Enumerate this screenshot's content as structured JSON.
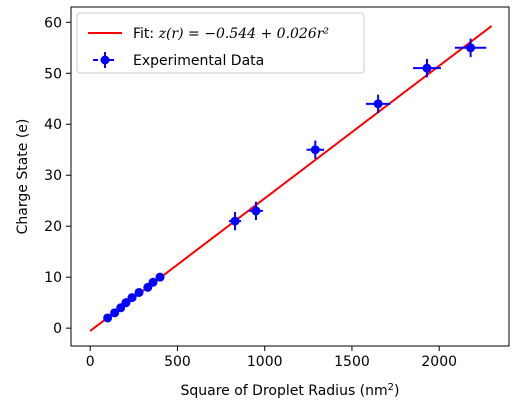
{
  "chart_data": {
    "type": "scatter",
    "title": "",
    "xlabel": "Square of Droplet Radius (nm",
    "xlabel_sup": "2",
    "xlabel_tail": ")",
    "ylabel": "Charge State (e)",
    "xlim": [
      -110,
      2400
    ],
    "ylim": [
      -3.5,
      63
    ],
    "xticks": [
      0,
      500,
      1000,
      1500,
      2000,
      2500
    ],
    "xtick_labels": [
      "0",
      "500",
      "1000",
      "1500",
      "2000",
      ""
    ],
    "yticks": [
      0,
      10,
      20,
      30,
      40,
      50,
      60
    ],
    "ytick_labels": [
      "0",
      "10",
      "20",
      "30",
      "40",
      "50",
      "60"
    ],
    "grid": false,
    "legend_position": "top-left",
    "colors": {
      "fit": "#ff0000",
      "data": "#0000ff",
      "axis": "#000000"
    },
    "fit": {
      "name": "Fit: ",
      "math": "z(r) = −0.544 + 0.026r²",
      "intercept": -0.544,
      "slope": 0.026,
      "x_range": [
        0,
        2300
      ]
    },
    "series": [
      {
        "name": "Experimental Data",
        "points": [
          {
            "x": 100,
            "y": 2,
            "xerr": 0,
            "yerr": 0
          },
          {
            "x": 140,
            "y": 3,
            "xerr": 0,
            "yerr": 0
          },
          {
            "x": 175,
            "y": 4,
            "xerr": 0,
            "yerr": 0
          },
          {
            "x": 205,
            "y": 5,
            "xerr": 0,
            "yerr": 0
          },
          {
            "x": 240,
            "y": 6,
            "xerr": 0,
            "yerr": 0
          },
          {
            "x": 280,
            "y": 7,
            "xerr": 0,
            "yerr": 0
          },
          {
            "x": 330,
            "y": 8,
            "xerr": 0,
            "yerr": 0
          },
          {
            "x": 360,
            "y": 9,
            "xerr": 0,
            "yerr": 0
          },
          {
            "x": 400,
            "y": 10,
            "xerr": 0,
            "yerr": 0
          },
          {
            "x": 830,
            "y": 21,
            "xerr": 35,
            "yerr": 1.8
          },
          {
            "x": 950,
            "y": 23,
            "xerr": 40,
            "yerr": 1.8
          },
          {
            "x": 1290,
            "y": 35,
            "xerr": 50,
            "yerr": 1.8
          },
          {
            "x": 1650,
            "y": 44,
            "xerr": 70,
            "yerr": 1.8
          },
          {
            "x": 1930,
            "y": 51,
            "xerr": 80,
            "yerr": 1.8
          },
          {
            "x": 2180,
            "y": 55,
            "xerr": 90,
            "yerr": 1.8
          }
        ]
      }
    ]
  }
}
